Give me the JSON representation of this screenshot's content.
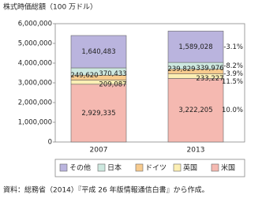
{
  "chart_data": {
    "type": "stacked_bar",
    "y_axis_title": "株式時価総額（100 万ドル）",
    "categories": [
      "2007",
      "2013"
    ],
    "ylim": [
      0,
      6000000
    ],
    "yticks": [
      0,
      {
        "value": 1000000,
        "label": "1,000,000"
      },
      {
        "value": 2000000,
        "label": "2,000,000"
      },
      {
        "value": 3000000,
        "label": "3,000,000"
      },
      {
        "value": 4000000,
        "label": "4,000,000"
      },
      {
        "value": 5000000,
        "label": "5,000,000"
      },
      {
        "value": 6000000,
        "label": "6,000,000"
      }
    ],
    "series": [
      {
        "name": "米国",
        "color": "#f5b9b1",
        "values": [
          2929335,
          3222205
        ],
        "value_labels": [
          "2,929,335",
          "3,222,205"
        ],
        "change": "10.0%"
      },
      {
        "name": "英国",
        "color": "#fcefb4",
        "values": [
          209087,
          233227
        ],
        "value_labels": [
          "209,087",
          "233,227"
        ],
        "change": "11.5%"
      },
      {
        "name": "ドイツ",
        "color": "#f7cb8e",
        "values": [
          249620,
          239829
        ],
        "value_labels": [
          "249,620",
          "239,829"
        ],
        "change": "-3.9%"
      },
      {
        "name": "日本",
        "color": "#cde8df",
        "values": [
          370433,
          339976
        ],
        "value_labels": [
          "370,433",
          "339,976"
        ],
        "change": "-8.2%"
      },
      {
        "name": "その他",
        "color": "#bab4de",
        "values": [
          1640483,
          1589028
        ],
        "value_labels": [
          "1,640,483",
          "1,589,028"
        ],
        "change": "-3.1%"
      }
    ],
    "source": "資料：総務省（2014）『平成 26 年版情報通信白書』から作成。"
  }
}
